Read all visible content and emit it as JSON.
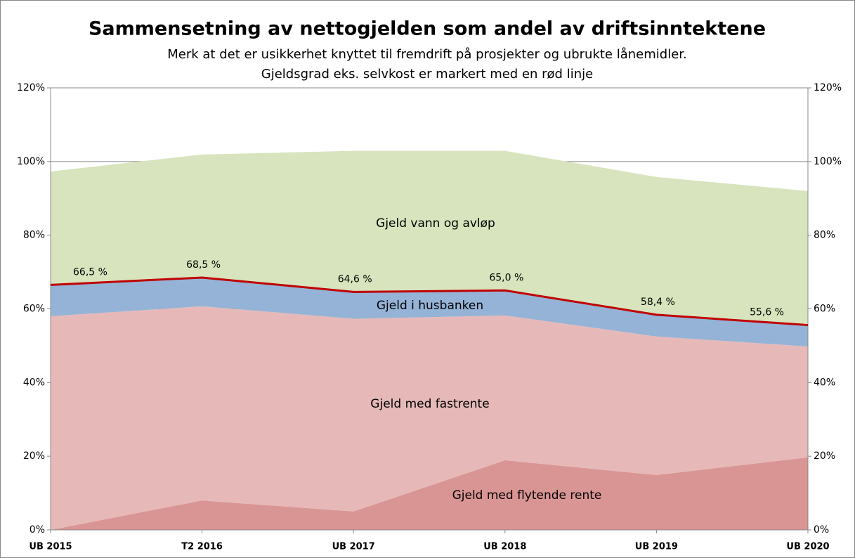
{
  "chart_data": {
    "type": "stacked_area_line",
    "title": "Sammensetning av nettogjelden som andel av driftsinntektene",
    "subtitle": [
      "Merk at det er usikkerhet knyttet til fremdrift på prosjekter og ubrukte lånemidler.",
      "Gjeldsgrad eks. selvkost er markert med en rød linje"
    ],
    "categories": [
      "UB 2015",
      "T2 2016",
      "UB 2017",
      "UB 2018",
      "UB 2019",
      "UB 2020"
    ],
    "series": [
      {
        "name": "Gjeld med flytende rente",
        "color": "#d99594",
        "values": [
          0,
          8.0,
          5.0,
          18.9,
          14.9,
          19.7
        ]
      },
      {
        "name": "Gjeld med fastrente",
        "color": "#e6b9b8",
        "values": [
          58.0,
          52.7,
          52.3,
          39.3,
          37.6,
          30.1
        ]
      },
      {
        "name": "Gjeld i husbanken",
        "color": "#95b3d7",
        "values": [
          8.5,
          7.8,
          7.3,
          6.8,
          5.9,
          5.8
        ]
      },
      {
        "name": "Gjeld vann og avløp",
        "color": "#d7e4bd",
        "values": [
          30.8,
          33.4,
          38.3,
          37.9,
          37.4,
          36.4
        ]
      }
    ],
    "line": {
      "color": "#c00000",
      "values": [
        66.5,
        68.5,
        64.6,
        65.0,
        58.4,
        55.6
      ],
      "value_labels": [
        "66,5 %",
        "68,5 %",
        "64,6 %",
        "65,0 %",
        "58,4 %",
        "55,6 %"
      ]
    },
    "ylim": [
      0,
      120
    ],
    "yticks": [
      {
        "value": 0,
        "label": "0%"
      },
      {
        "value": 20,
        "label": "20%"
      },
      {
        "value": 40,
        "label": "40%"
      },
      {
        "value": 60,
        "label": "60%"
      },
      {
        "value": 80,
        "label": "80%"
      },
      {
        "value": 100,
        "label": "100%"
      },
      {
        "value": 120,
        "label": "120%"
      }
    ],
    "grid": true
  }
}
